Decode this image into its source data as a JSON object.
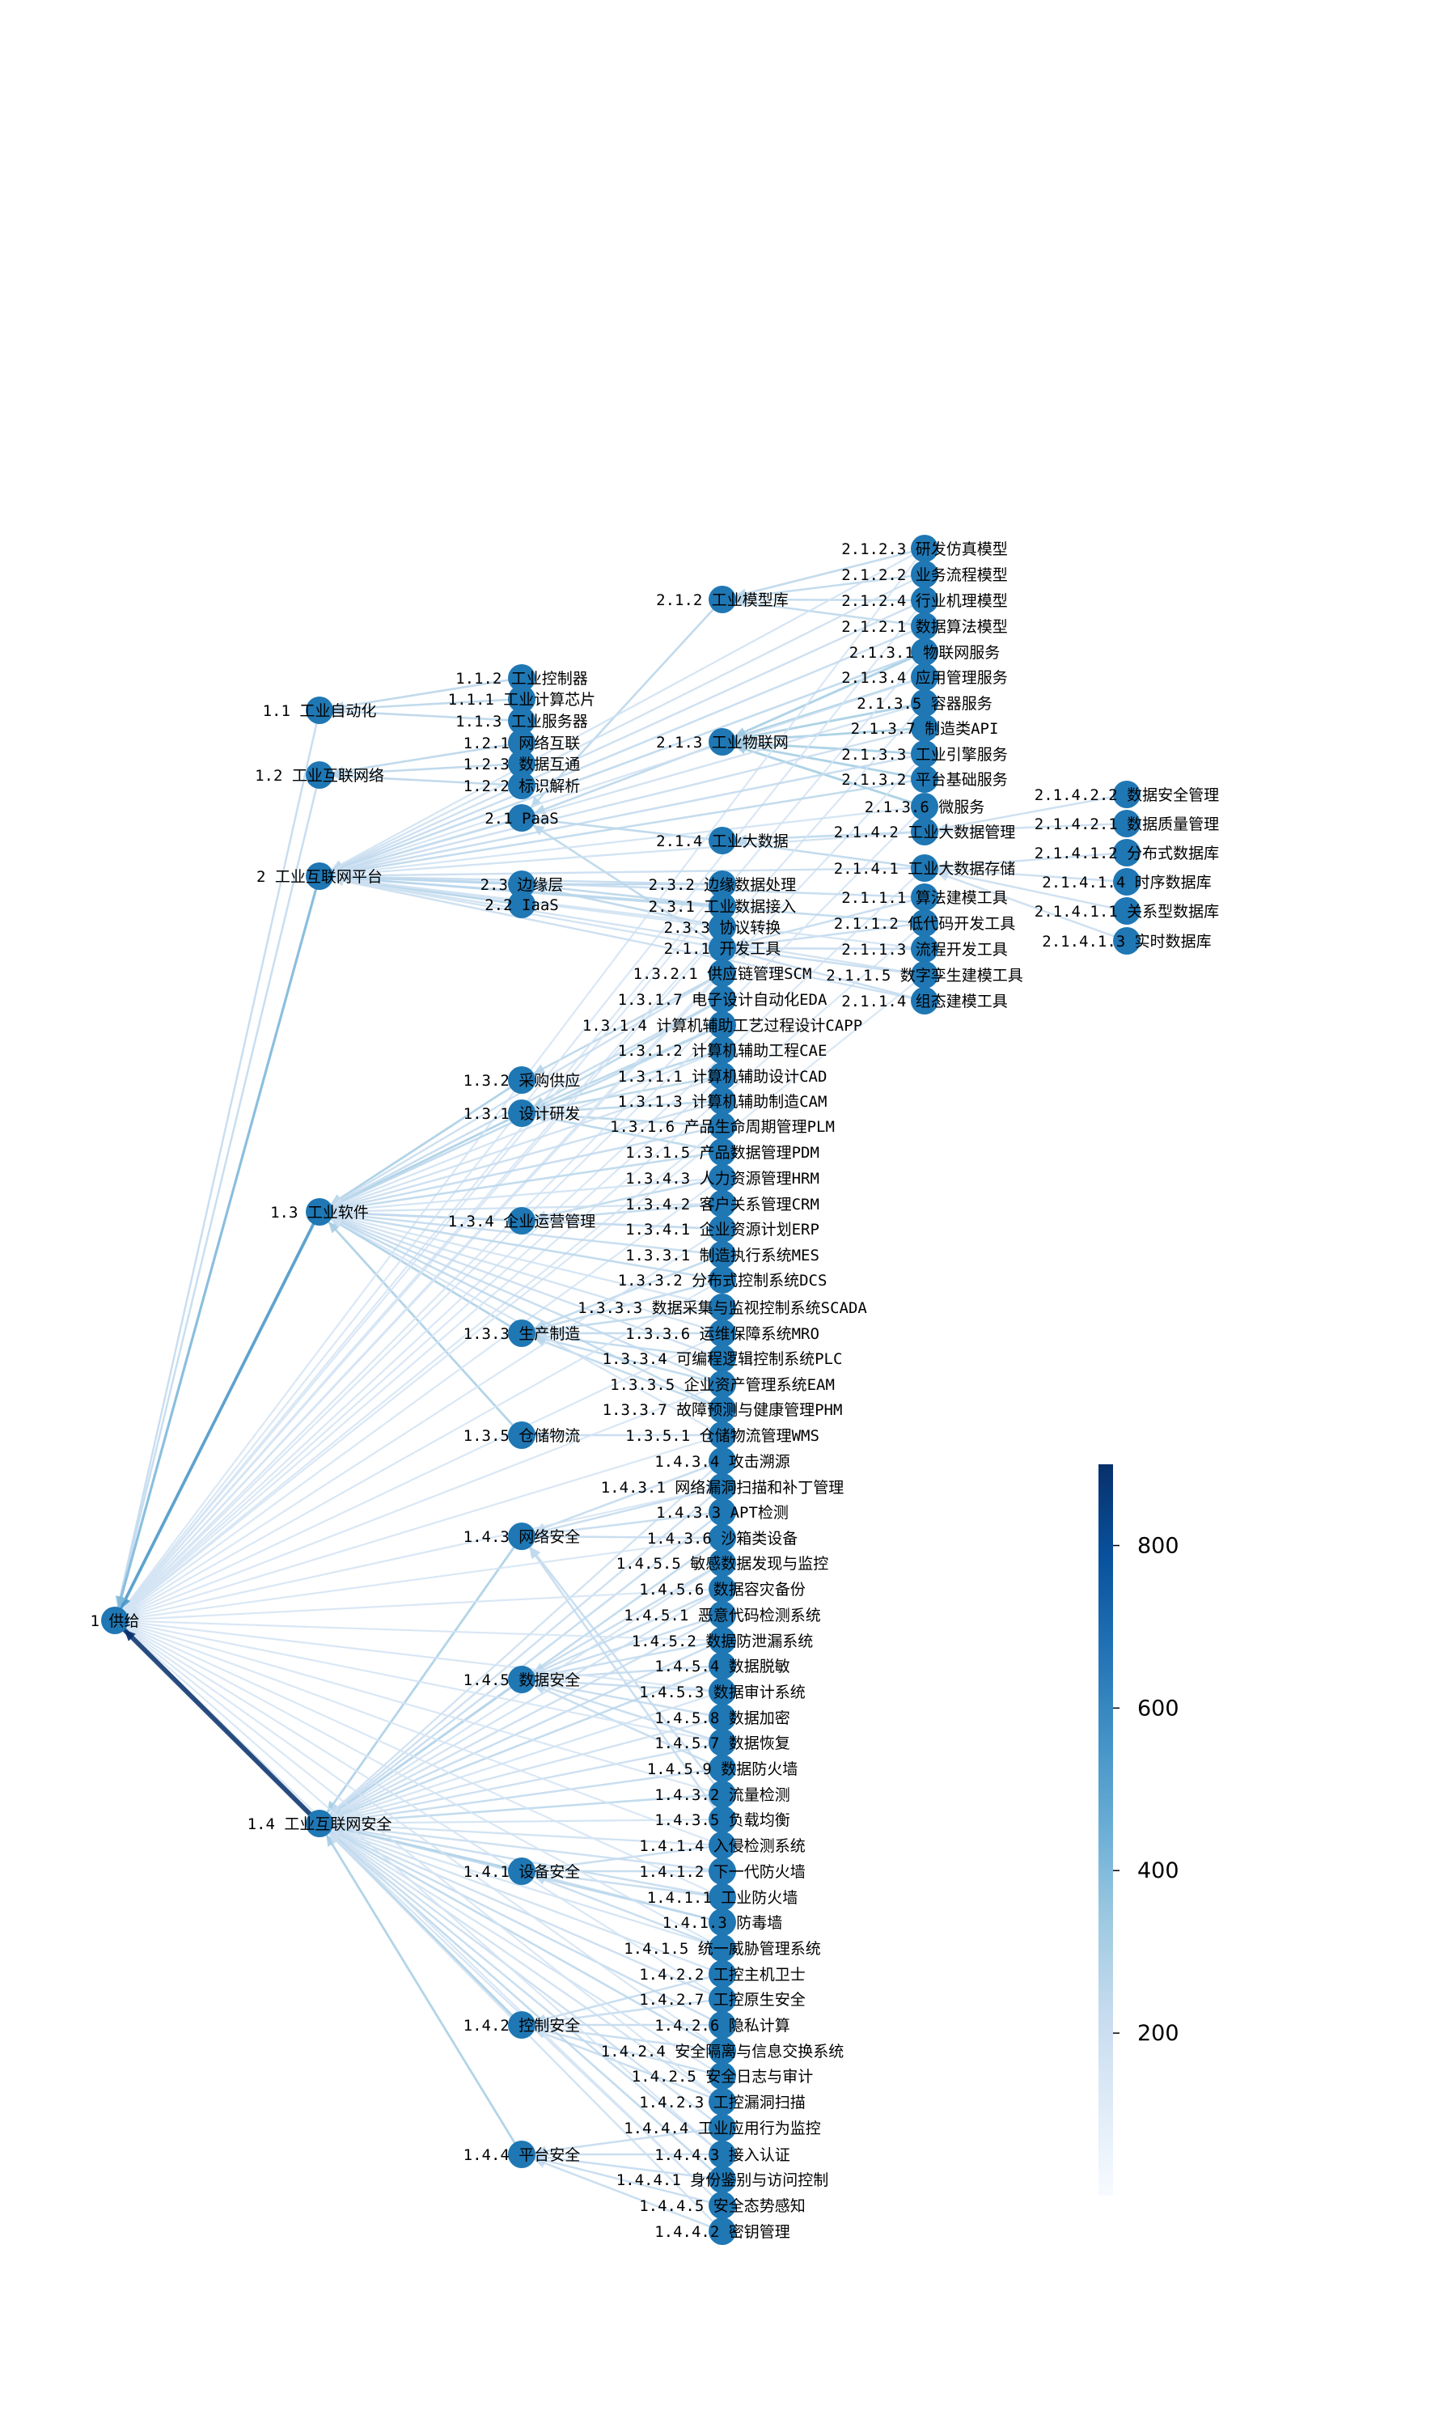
{
  "chart_data": {
    "type": "tree-graph",
    "colorbar": {
      "colormap": "Blues",
      "range": [
        0,
        900
      ],
      "ticks": [
        200,
        400,
        600,
        800
      ]
    },
    "colors": {
      "node": "#1f77b4",
      "edge_low": "#f7fbff",
      "edge_high": "#08306b"
    },
    "nodes": {
      "root": "1 供给",
      "n1_1": "1.1 工业自动化",
      "n1_2": "1.2 工业互联网络",
      "n2": "2 工业互联网平台",
      "n1_3": "1.3 工业软件",
      "n1_4": "1.4 工业互联网安全",
      "n1_1_2": "1.1.2 工业控制器",
      "n1_1_1": "1.1.1 工业计算芯片",
      "n1_1_3": "1.1.3 工业服务器",
      "n1_2_1": "1.2.1 网络互联",
      "n1_2_3": "1.2.3 数据互通",
      "n1_2_2": "1.2.2 标识解析",
      "n2_1": "2.1 PaaS",
      "n2_3": "2.3 边缘层",
      "n2_2": "2.2 IaaS",
      "n1_3_2": "1.3.2 采购供应",
      "n1_3_1": "1.3.1 设计研发",
      "n1_3_4": "1.3.4 企业运营管理",
      "n1_3_3": "1.3.3 生产制造",
      "n1_3_5": "1.3.5 仓储物流",
      "n1_4_3": "1.4.3 网络安全",
      "n1_4_5": "1.4.5 数据安全",
      "n1_4_1": "1.4.1 设备安全",
      "n1_4_2": "1.4.2 控制安全",
      "n1_4_4": "1.4.4 平台安全",
      "n2_1_2": "2.1.2 工业模型库",
      "n2_1_3": "2.1.3 工业物联网",
      "n2_1_4": "2.1.4 工业大数据",
      "c2_1_2_3": "2.1.2.3 研发仿真模型",
      "c2_1_2_2": "2.1.2.2 业务流程模型",
      "c2_1_2_4": "2.1.2.4 行业机理模型",
      "c2_1_2_1": "2.1.2.1 数据算法模型",
      "c2_1_3_1": "2.1.3.1 物联网服务",
      "c2_1_3_4": "2.1.3.4 应用管理服务",
      "c2_1_3_5": "2.1.3.5 容器服务",
      "c2_1_3_7": "2.1.3.7 制造类API",
      "c2_1_3_3": "2.1.3.3 工业引擎服务",
      "c2_1_3_2": "2.1.3.2 平台基础服务",
      "c2_1_3_6": "2.1.3.6 微服务",
      "c2_1_4_2": "2.1.4.2 工业大数据管理",
      "c2_1_4_1": "2.1.4.1 工业大数据存储",
      "c2_1_1_1": "2.1.1.1 算法建模工具",
      "c2_1_1_2": "2.1.1.2 低代码开发工具",
      "c2_1_1_3": "2.1.1.3 流程开发工具",
      "c2_1_1_5": "2.1.1.5 数字孪生建模工具",
      "c2_1_1_4": "2.1.1.4 组态建模工具",
      "e2_1_4_2_2": "2.1.4.2.2 数据安全管理",
      "e2_1_4_2_1": "2.1.4.2.1 数据质量管理",
      "e2_1_4_1_2": "2.1.4.1.2 分布式数据库",
      "e2_1_4_1_4": "2.1.4.1.4 时序数据库",
      "e2_1_4_1_1": "2.1.4.1.1 关系型数据库",
      "e2_1_4_1_3": "2.1.4.1.3 实时数据库",
      "c2_3_2": "2.3.2 边缘数据处理",
      "c2_3_1": "2.3.1 工业数据接入",
      "c2_3_3": "2.3.3 协议转换",
      "c2_1_1": "2.1.1 开发工具",
      "c1_3_2_1": "1.3.2.1 供应链管理SCM",
      "c1_3_1_7": "1.3.1.7 电子设计自动化EDA",
      "c1_3_1_4": "1.3.1.4 计算机辅助工艺过程设计CAPP",
      "c1_3_1_2": "1.3.1.2 计算机辅助工程CAE",
      "c1_3_1_1": "1.3.1.1 计算机辅助设计CAD",
      "c1_3_1_3": "1.3.1.3 计算机辅助制造CAM",
      "c1_3_1_6": "1.3.1.6 产品生命周期管理PLM",
      "c1_3_1_5": "1.3.1.5 产品数据管理PDM",
      "c1_3_4_3": "1.3.4.3 人力资源管理HRM",
      "c1_3_4_2": "1.3.4.2 客户关系管理CRM",
      "c1_3_4_1": "1.3.4.1 企业资源计划ERP",
      "c1_3_3_1": "1.3.3.1 制造执行系统MES",
      "c1_3_3_2": "1.3.3.2 分布式控制系统DCS",
      "c1_3_3_3": "1.3.3.3 数据采集与监视控制系统SCADA",
      "c1_3_3_6": "1.3.3.6 运维保障系统MRO",
      "c1_3_3_4": "1.3.3.4 可编程逻辑控制系统PLC",
      "c1_3_3_5": "1.3.3.5 企业资产管理系统EAM",
      "c1_3_3_7": "1.3.3.7 故障预测与健康管理PHM",
      "c1_3_5_1": "1.3.5.1 仓储物流管理WMS",
      "c1_4_3_4": "1.4.3.4 攻击溯源",
      "c1_4_3_1": "1.4.3.1 网络漏洞扫描和补丁管理",
      "c1_4_3_3": "1.4.3.3 APT检测",
      "c1_4_3_6": "1.4.3.6 沙箱类设备",
      "c1_4_5_5": "1.4.5.5 敏感数据发现与监控",
      "c1_4_5_6": "1.4.5.6 数据容灾备份",
      "c1_4_5_1": "1.4.5.1 恶意代码检测系统",
      "c1_4_5_2": "1.4.5.2 数据防泄漏系统",
      "c1_4_5_4": "1.4.5.4 数据脱敏",
      "c1_4_5_3": "1.4.5.3 数据审计系统",
      "c1_4_5_8": "1.4.5.8 数据加密",
      "c1_4_5_7": "1.4.5.7 数据恢复",
      "c1_4_5_9": "1.4.5.9 数据防火墙",
      "c1_4_3_2": "1.4.3.2 流量检测",
      "c1_4_3_5": "1.4.3.5 负载均衡",
      "c1_4_1_4": "1.4.1.4 入侵检测系统",
      "c1_4_1_2": "1.4.1.2 下一代防火墙",
      "c1_4_1_1": "1.4.1.1 工业防火墙",
      "c1_4_1_3": "1.4.1.3 防毒墙",
      "c1_4_1_5": "1.4.1.5 统一威胁管理系统",
      "c1_4_2_2": "1.4.2.2 工控主机卫士",
      "c1_4_2_7": "1.4.2.7 工控原生安全",
      "c1_4_2_6": "1.4.2.6 隐私计算",
      "c1_4_2_4": "1.4.2.4 安全隔离与信息交换系统",
      "c1_4_2_5": "1.4.2.5 安全日志与审计",
      "c1_4_2_3": "1.4.2.3 工控漏洞扫描",
      "c1_4_4_4": "1.4.4.4 工业应用行为监控",
      "c1_4_4_3": "1.4.4.3 接入认证",
      "c1_4_4_1": "1.4.4.1 身份鉴别与访问控制",
      "c1_4_4_5": "1.4.4.5 安全态势感知",
      "c1_4_4_2": "1.4.4.2 密钥管理"
    }
  }
}
